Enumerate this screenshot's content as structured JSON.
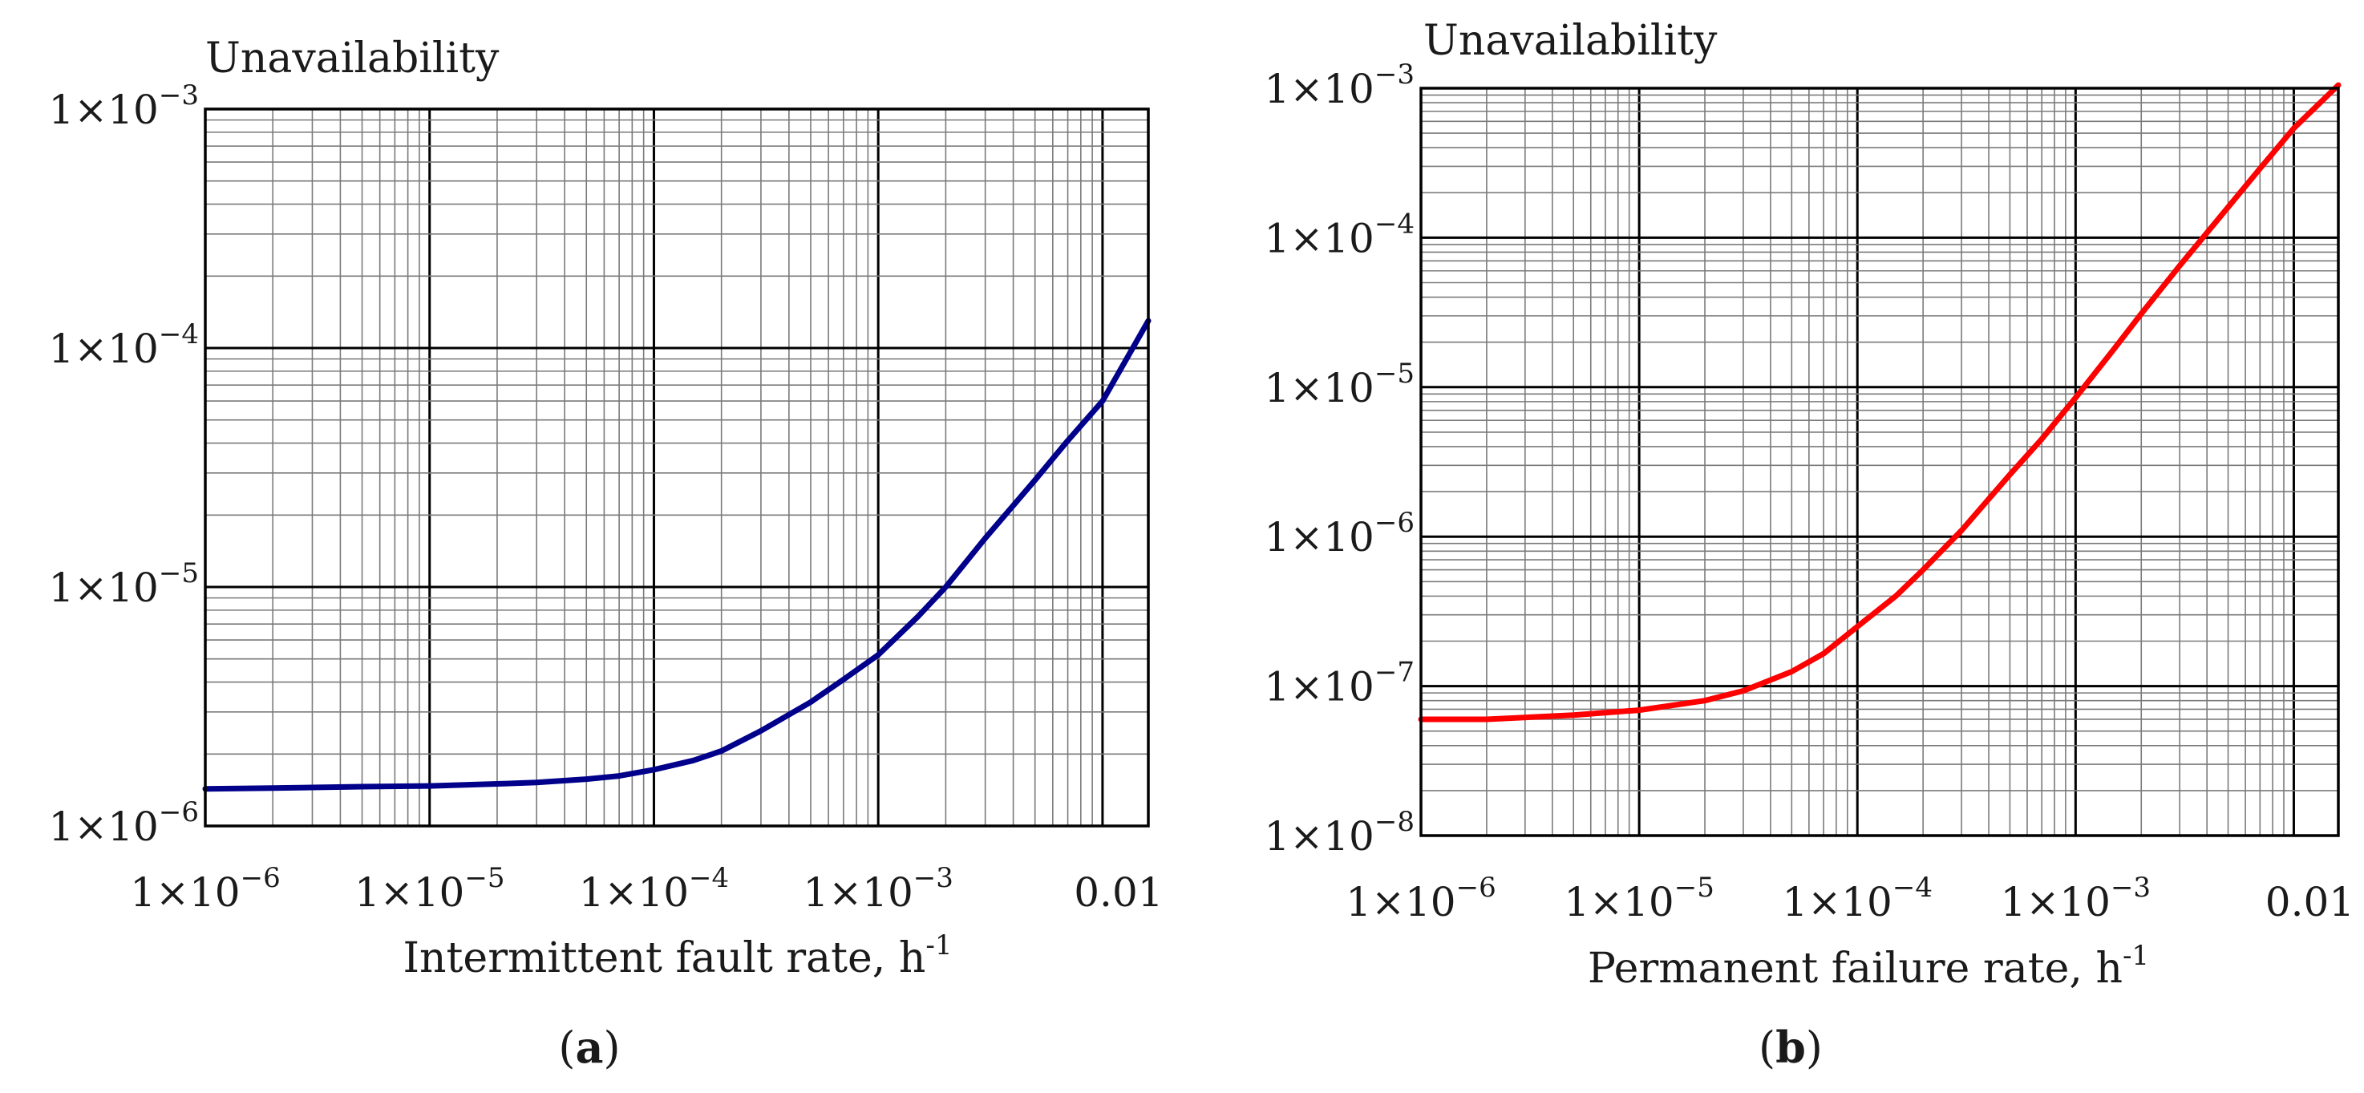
{
  "chart_data": [
    {
      "type": "line",
      "panel_label": "a",
      "ylabel": "Unavailability",
      "xlabel": "Intermittent fault rate, h",
      "xlabel_sup": "-1",
      "xscale": "log",
      "yscale": "log",
      "xlim": [
        1e-06,
        0.016
      ],
      "ylim": [
        1e-06,
        0.001
      ],
      "grid": true,
      "x_ticks": [
        {
          "mantissa": "1×10",
          "exp": "−6"
        },
        {
          "mantissa": "1×10",
          "exp": "−5"
        },
        {
          "mantissa": "1×10",
          "exp": "−4"
        },
        {
          "mantissa": "1×10",
          "exp": "−3"
        },
        {
          "mantissa": "0.01",
          "exp": ""
        }
      ],
      "y_ticks": [
        {
          "mantissa": "1×10",
          "exp": "−3"
        },
        {
          "mantissa": "1×10",
          "exp": "−4"
        },
        {
          "mantissa": "1×10",
          "exp": "−5"
        },
        {
          "mantissa": "1×10",
          "exp": "−6"
        }
      ],
      "series": [
        {
          "color": "#00008b",
          "x": [
            1e-06,
            2e-06,
            5e-06,
            1e-05,
            2e-05,
            3e-05,
            5e-05,
            7e-05,
            0.0001,
            0.00015,
            0.0002,
            0.0003,
            0.0005,
            0.0007,
            0.001,
            0.0015,
            0.002,
            0.003,
            0.005,
            0.007,
            0.01,
            0.016
          ],
          "y": [
            1.43e-06,
            1.44e-06,
            1.46e-06,
            1.47e-06,
            1.5e-06,
            1.52e-06,
            1.57e-06,
            1.62e-06,
            1.72e-06,
            1.88e-06,
            2.06e-06,
            2.5e-06,
            3.3e-06,
            4.1e-06,
            5.2e-06,
            7.5e-06,
            1e-05,
            1.6e-05,
            2.8e-05,
            4.1e-05,
            6e-05,
            0.00013
          ]
        }
      ]
    },
    {
      "type": "line",
      "panel_label": "b",
      "ylabel": "Unavailability",
      "xlabel": "Permanent failure rate, h",
      "xlabel_sup": "-1",
      "xscale": "log",
      "yscale": "log",
      "xlim": [
        1e-06,
        0.016
      ],
      "ylim": [
        1e-08,
        0.001
      ],
      "grid": true,
      "x_ticks": [
        {
          "mantissa": "1×10",
          "exp": "−6"
        },
        {
          "mantissa": "1×10",
          "exp": "−5"
        },
        {
          "mantissa": "1×10",
          "exp": "−4"
        },
        {
          "mantissa": "1×10",
          "exp": "−3"
        },
        {
          "mantissa": "0.01",
          "exp": ""
        }
      ],
      "y_ticks": [
        {
          "mantissa": "1×10",
          "exp": "−3"
        },
        {
          "mantissa": "1×10",
          "exp": "−4"
        },
        {
          "mantissa": "1×10",
          "exp": "−5"
        },
        {
          "mantissa": "1×10",
          "exp": "−6"
        },
        {
          "mantissa": "1×10",
          "exp": "−7"
        },
        {
          "mantissa": "1×10",
          "exp": "−8"
        }
      ],
      "series": [
        {
          "color": "#ff0000",
          "x": [
            1e-06,
            2e-06,
            5e-06,
            1e-05,
            2e-05,
            3e-05,
            5e-05,
            7e-05,
            0.0001,
            0.00015,
            0.0002,
            0.0003,
            0.0005,
            0.0007,
            0.001,
            0.0015,
            0.002,
            0.003,
            0.005,
            0.007,
            0.01,
            0.016
          ],
          "y": [
            6e-08,
            6e-08,
            6.4e-08,
            6.9e-08,
            8e-08,
            9.3e-08,
            1.25e-07,
            1.65e-07,
            2.5e-07,
            4e-07,
            6e-07,
            1.1e-06,
            2.6e-06,
            4.5e-06,
            8.5e-06,
            1.8e-05,
            3.1e-05,
            6.5e-05,
            0.00016,
            0.00029,
            0.00054,
            0.00105
          ]
        }
      ]
    }
  ]
}
